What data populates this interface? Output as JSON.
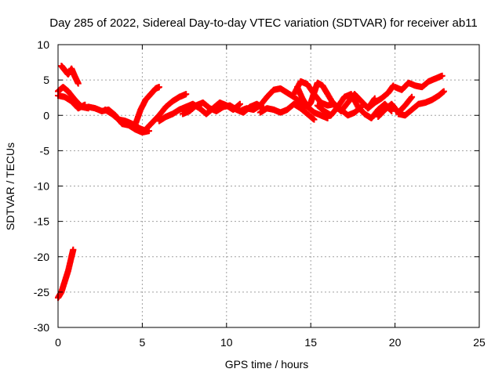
{
  "chart_data": {
    "type": "scatter",
    "title": "Day 285 of 2022, Sidereal Day-to-day VTEC variation (SDTVAR) for receiver ab11",
    "xlabel": "GPS time / hours",
    "ylabel": "SDTVAR / TECUs",
    "xlim": [
      0,
      25
    ],
    "ylim": [
      -30,
      10
    ],
    "xticks": [
      0,
      5,
      10,
      15,
      20,
      25
    ],
    "yticks": [
      -30,
      -25,
      -20,
      -15,
      -10,
      -5,
      0,
      5,
      10
    ],
    "grid": true,
    "marker": "+",
    "series": [
      {
        "name": "SDTVAR",
        "color": "#ff0000",
        "tracks": [
          {
            "x": [
              0.0,
              0.2,
              0.4,
              0.6,
              0.8,
              0.9
            ],
            "y": [
              -25.8,
              -25.0,
              -23.5,
              -22.0,
              -20.0,
              -19.0
            ]
          },
          {
            "x": [
              0.2,
              0.4,
              0.6,
              0.8,
              1.0,
              1.2
            ],
            "y": [
              7.0,
              6.4,
              5.8,
              6.6,
              5.5,
              4.5
            ]
          },
          {
            "x": [
              0.0,
              0.3,
              0.6,
              1.0,
              1.4,
              1.8
            ],
            "y": [
              3.4,
              4.0,
              3.4,
              2.2,
              1.2,
              1.0
            ]
          },
          {
            "x": [
              0.0,
              0.4,
              0.8,
              1.2,
              1.6
            ],
            "y": [
              2.8,
              2.6,
              2.0,
              1.0,
              1.5
            ]
          },
          {
            "x": [
              1.8,
              2.2,
              2.6,
              3.0,
              3.4,
              3.8,
              4.2,
              4.6,
              5.0,
              5.4
            ],
            "y": [
              1.2,
              1.0,
              0.6,
              0.8,
              0.0,
              -1.2,
              -1.4,
              -2.0,
              -2.4,
              -2.2
            ]
          },
          {
            "x": [
              2.8,
              3.2,
              3.6,
              4.0,
              4.4,
              4.8,
              5.2
            ],
            "y": [
              0.8,
              0.2,
              -0.6,
              -0.8,
              -1.2,
              -1.8,
              -2.2
            ]
          },
          {
            "x": [
              4.6,
              4.9,
              5.2,
              5.5,
              5.8,
              6.0
            ],
            "y": [
              -1.2,
              0.8,
              2.2,
              3.0,
              3.8,
              4.0
            ]
          },
          {
            "x": [
              5.2,
              5.6,
              6.0,
              6.4,
              6.8,
              7.2,
              7.6
            ],
            "y": [
              -2.0,
              -1.0,
              0.0,
              1.2,
              2.0,
              2.6,
              3.0
            ]
          },
          {
            "x": [
              6.0,
              6.4,
              6.8,
              7.2,
              7.6,
              8.0,
              8.4,
              8.8,
              9.2,
              9.6,
              10.0,
              10.4,
              10.8
            ],
            "y": [
              -0.8,
              -0.2,
              0.2,
              0.8,
              1.2,
              1.6,
              1.0,
              0.2,
              1.0,
              1.8,
              1.4,
              0.8,
              1.6
            ]
          },
          {
            "x": [
              7.4,
              7.8,
              8.2,
              8.6,
              9.0,
              9.4,
              9.8,
              10.2,
              10.6,
              11.0,
              11.4,
              11.8,
              12.2
            ],
            "y": [
              0.2,
              0.6,
              1.4,
              1.8,
              1.0,
              0.6,
              1.2,
              1.4,
              0.8,
              0.4,
              1.2,
              1.6,
              1.0
            ]
          },
          {
            "x": [
              10.8,
              11.2,
              11.6,
              12.0,
              12.4,
              12.8,
              13.2,
              13.6,
              14.0,
              14.4,
              14.8,
              15.2,
              15.6,
              16.0
            ],
            "y": [
              0.6,
              1.0,
              0.8,
              1.4,
              2.6,
              3.6,
              3.8,
              3.2,
              2.6,
              1.8,
              1.2,
              0.4,
              0.0,
              -0.4
            ]
          },
          {
            "x": [
              12.0,
              12.4,
              12.8,
              13.2,
              13.6,
              14.0,
              14.4,
              14.8,
              15.2
            ],
            "y": [
              0.4,
              1.0,
              0.8,
              0.4,
              0.8,
              1.6,
              1.0,
              0.2,
              -0.6
            ]
          },
          {
            "x": [
              14.0,
              14.4,
              14.8,
              15.2,
              15.6,
              16.0,
              16.4,
              16.8,
              17.2,
              17.6,
              18.0
            ],
            "y": [
              3.0,
              4.8,
              4.4,
              3.0,
              1.8,
              1.4,
              1.6,
              0.8,
              0.0,
              0.4,
              1.2
            ]
          },
          {
            "x": [
              14.2,
              14.5,
              14.8,
              15.0,
              15.2,
              15.4,
              15.7,
              16.0,
              16.4,
              16.8,
              17.2,
              17.6,
              18.0,
              18.4,
              18.8
            ],
            "y": [
              4.0,
              2.4,
              1.2,
              1.8,
              3.2,
              4.6,
              4.2,
              3.0,
              1.4,
              0.6,
              1.8,
              3.0,
              2.0,
              1.0,
              2.4
            ]
          },
          {
            "x": [
              15.4,
              15.8,
              16.2,
              16.6,
              17.0,
              17.4,
              17.8,
              18.2,
              18.6,
              19.0,
              19.4,
              19.8
            ],
            "y": [
              1.4,
              0.6,
              0.0,
              1.2,
              2.6,
              3.0,
              1.2,
              0.2,
              -0.4,
              0.8,
              1.6,
              0.6
            ]
          },
          {
            "x": [
              18.4,
              18.8,
              19.2,
              19.6,
              19.9
            ],
            "y": [
              1.0,
              1.8,
              2.4,
              3.2,
              4.2
            ]
          },
          {
            "x": [
              19.0,
              19.4,
              19.8,
              20.2,
              20.6,
              21.0
            ],
            "y": [
              -0.2,
              0.8,
              1.6,
              0.4,
              1.4,
              2.6
            ]
          },
          {
            "x": [
              20.0,
              20.4,
              20.8,
              21.2,
              21.6,
              22.0,
              22.4,
              22.8
            ],
            "y": [
              4.0,
              3.6,
              4.6,
              4.2,
              4.0,
              4.8,
              5.2,
              5.6
            ]
          },
          {
            "x": [
              20.2,
              20.6,
              21.0,
              21.4,
              21.8,
              22.2,
              22.6,
              22.9
            ],
            "y": [
              0.2,
              0.0,
              0.8,
              1.6,
              1.8,
              2.2,
              2.8,
              3.4
            ]
          }
        ]
      }
    ]
  }
}
